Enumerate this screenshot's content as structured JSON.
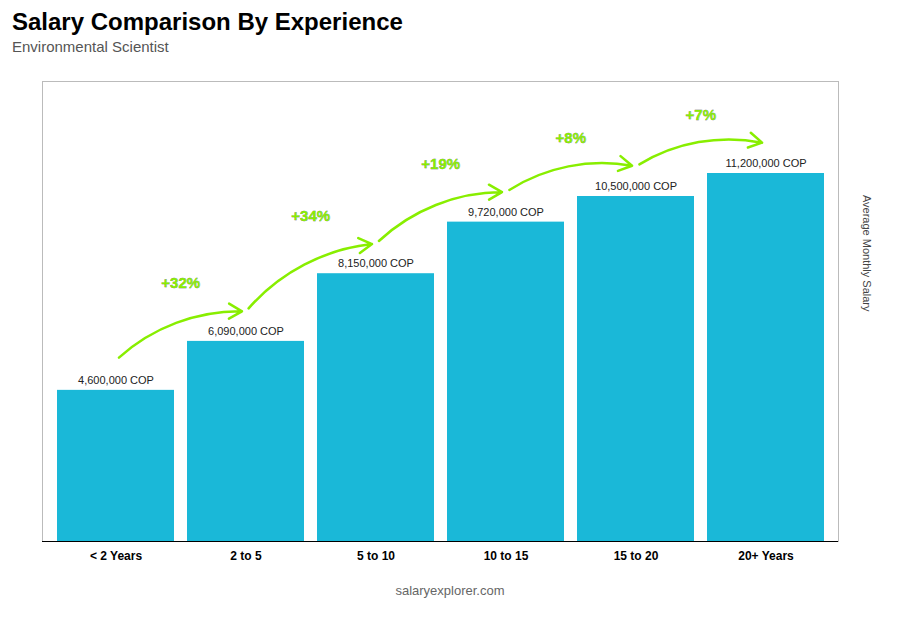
{
  "chart_data": {
    "type": "bar",
    "title": "Salary Comparison By Experience",
    "subtitle": "Environmental Scientist",
    "ylabel": "Average Monthly Salary",
    "categories": [
      "< 2 Years",
      "2 to 5",
      "5 to 10",
      "10 to 15",
      "15 to 20",
      "20+ Years"
    ],
    "values": [
      4600000,
      6090000,
      8150000,
      9720000,
      10500000,
      11200000
    ],
    "value_labels": [
      "4,600,000 COP",
      "6,090,000 COP",
      "8,150,000 COP",
      "9,720,000 COP",
      "10,500,000 COP",
      "11,200,000 COP"
    ],
    "data_labels": true,
    "color": "#1ab8d8",
    "ylim": [
      0,
      14000000
    ],
    "tick_labels": "x",
    "grid": false,
    "annotations": [
      {
        "from": "< 2 Years",
        "to": "2 to 5",
        "text": "+32%",
        "color": "#88ee00"
      },
      {
        "from": "2 to 5",
        "to": "5 to 10",
        "text": "+34%",
        "color": "#88ee00"
      },
      {
        "from": "5 to 10",
        "to": "10 to 15",
        "text": "+19%",
        "color": "#88ee00"
      },
      {
        "from": "10 to 15",
        "to": "15 to 20",
        "text": "+8%",
        "color": "#88ee00"
      },
      {
        "from": "15 to 20",
        "to": "20+ Years",
        "text": "+7%",
        "color": "#88ee00"
      }
    ],
    "watermark": "salaryexplorer.com"
  }
}
